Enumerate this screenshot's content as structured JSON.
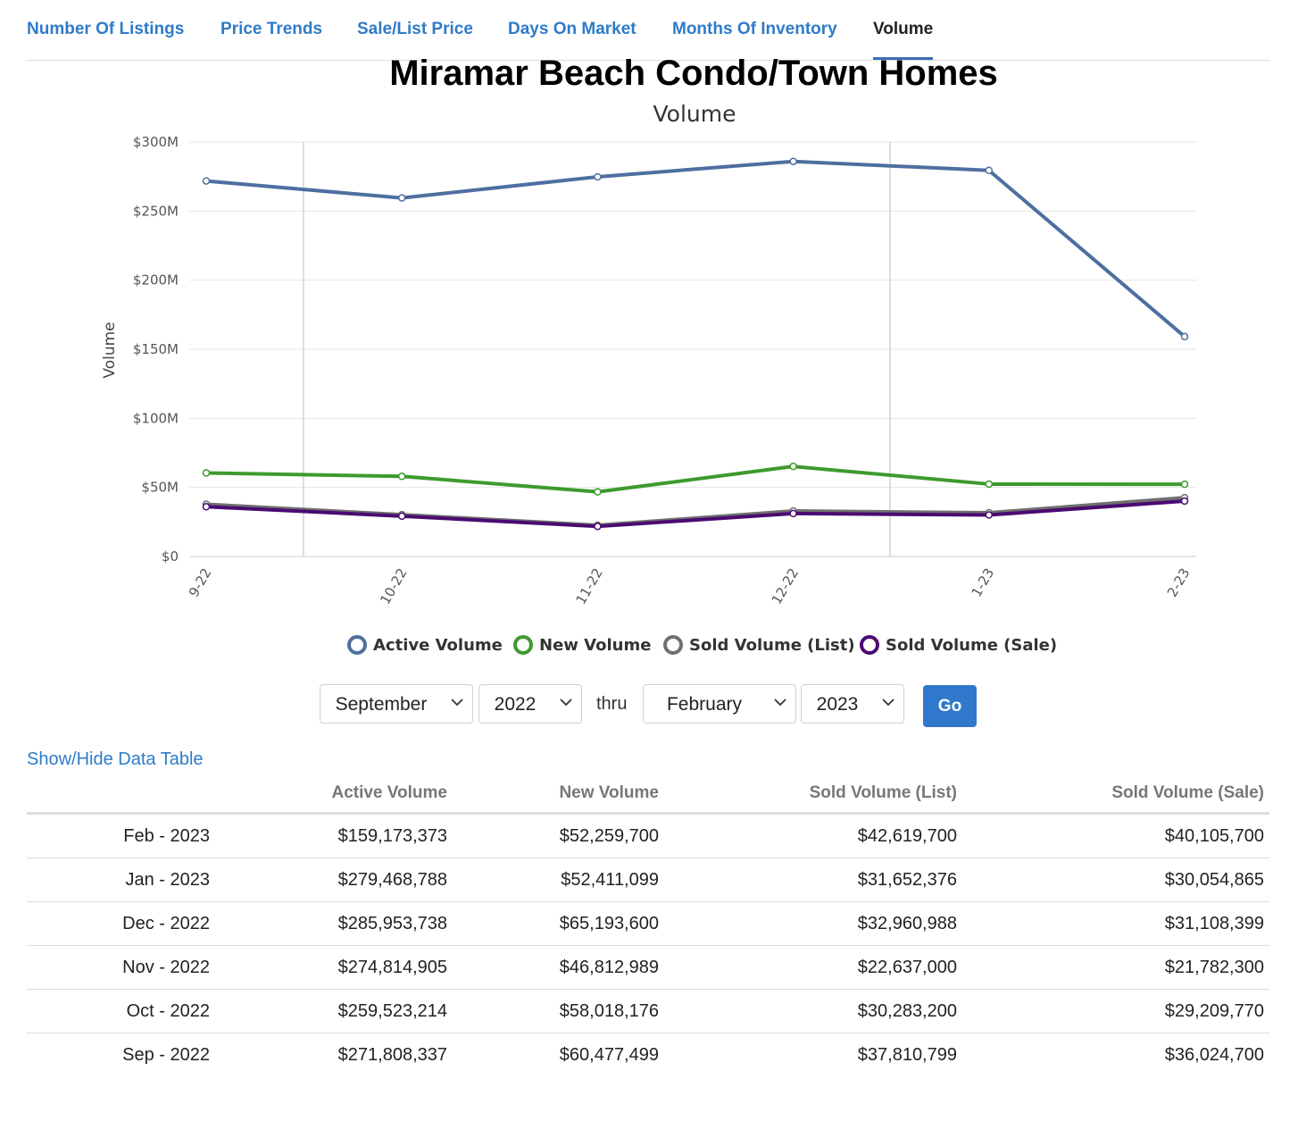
{
  "tabs": [
    {
      "label": "Number Of Listings",
      "active": false
    },
    {
      "label": "Price Trends",
      "active": false
    },
    {
      "label": "Sale/List Price",
      "active": false
    },
    {
      "label": "Days On Market",
      "active": false
    },
    {
      "label": "Months Of Inventory",
      "active": false
    },
    {
      "label": "Volume",
      "active": true
    }
  ],
  "chart_data": {
    "type": "line",
    "title": "Miramar Beach Condo/Town Homes",
    "subtitle": "Volume",
    "ylabel": "Volume",
    "xlabel": "",
    "categories": [
      "9-22",
      "10-22",
      "11-22",
      "12-22",
      "1-23",
      "2-23"
    ],
    "ylim": [
      0,
      300000000
    ],
    "y_ticks": [
      {
        "value": 0,
        "label": "$0"
      },
      {
        "value": 50000000,
        "label": "$50M"
      },
      {
        "value": 100000000,
        "label": "$100M"
      },
      {
        "value": 150000000,
        "label": "$150M"
      },
      {
        "value": 200000000,
        "label": "$200M"
      },
      {
        "value": 250000000,
        "label": "$250M"
      },
      {
        "value": 300000000,
        "label": "$300M"
      }
    ],
    "grid": true,
    "legend_position": "bottom",
    "series": [
      {
        "name": "Active Volume",
        "color": "#4e6fa0",
        "values": [
          271808337,
          259523214,
          274814905,
          285953738,
          279468788,
          159173373
        ]
      },
      {
        "name": "New Volume",
        "color": "#3e9a2e",
        "values": [
          60477499,
          58018176,
          46812989,
          65193600,
          52411099,
          52259700
        ]
      },
      {
        "name": "Sold Volume (List)",
        "color": "#707070",
        "values": [
          37810799,
          30283200,
          22637000,
          32960988,
          31652376,
          42619700
        ]
      },
      {
        "name": "Sold Volume (Sale)",
        "color": "#4b0a72",
        "values": [
          36024700,
          29209770,
          21782300,
          31108399,
          30054865,
          40105700
        ]
      }
    ]
  },
  "controls": {
    "start_month": "September",
    "start_year": "2022",
    "thru_label": "thru",
    "end_month": "February",
    "end_year": "2023",
    "go_label": "Go"
  },
  "table_toggle": "Show/Hide Data Table",
  "table": {
    "headers": [
      "",
      "Active Volume",
      "New Volume",
      "Sold Volume (List)",
      "Sold Volume (Sale)"
    ],
    "rows": [
      [
        "Feb - 2023",
        "$159,173,373",
        "$52,259,700",
        "$42,619,700",
        "$40,105,700"
      ],
      [
        "Jan - 2023",
        "$279,468,788",
        "$52,411,099",
        "$31,652,376",
        "$30,054,865"
      ],
      [
        "Dec - 2022",
        "$285,953,738",
        "$65,193,600",
        "$32,960,988",
        "$31,108,399"
      ],
      [
        "Nov - 2022",
        "$274,814,905",
        "$46,812,989",
        "$22,637,000",
        "$21,782,300"
      ],
      [
        "Oct - 2022",
        "$259,523,214",
        "$58,018,176",
        "$30,283,200",
        "$29,209,770"
      ],
      [
        "Sep - 2022",
        "$271,808,337",
        "$60,477,499",
        "$37,810,799",
        "$36,024,700"
      ]
    ]
  }
}
